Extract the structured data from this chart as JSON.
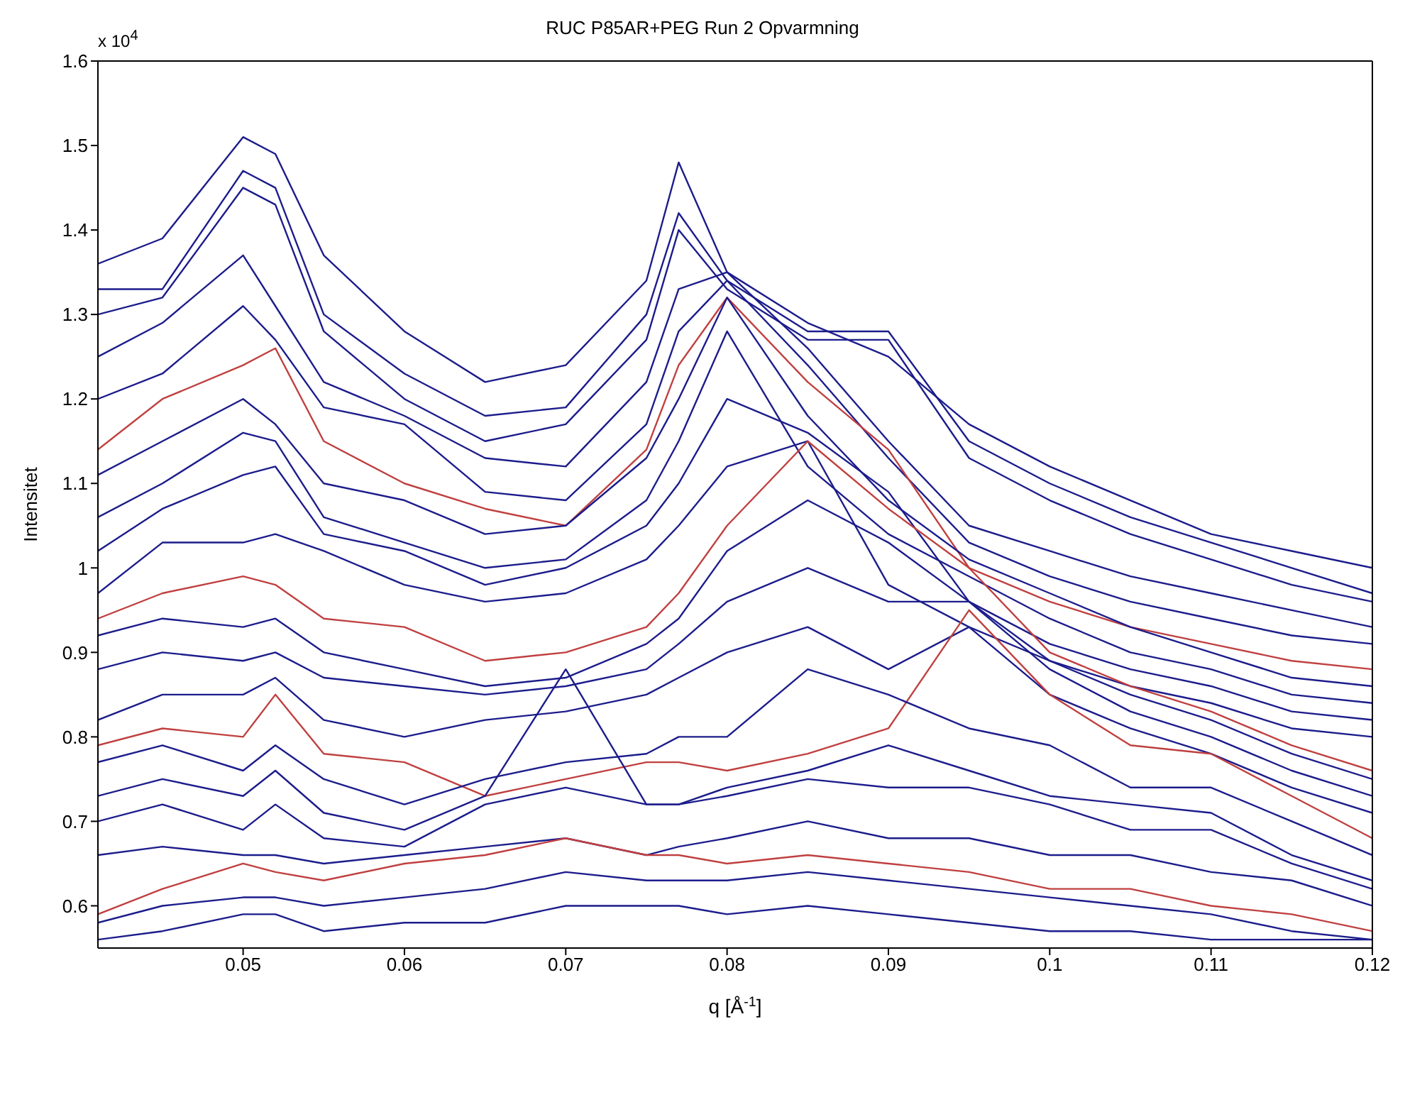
{
  "chart_data": {
    "type": "line",
    "title": "RUC P85AR+PEG Run 2 Opvarmning",
    "xlabel": "q [Å$^{-1}$]",
    "ylabel": "Intensitet",
    "annotations": [
      "x 10$^{4}$"
    ],
    "x": [
      0.041,
      0.045,
      0.05,
      0.052,
      0.055,
      0.06,
      0.065,
      0.07,
      0.075,
      0.077,
      0.08,
      0.085,
      0.09,
      0.095,
      0.1,
      0.105,
      0.11,
      0.115,
      0.12
    ],
    "xlim": [
      0.041,
      0.12
    ],
    "xticks": [
      0.05,
      0.06,
      0.07,
      0.08,
      0.09,
      0.1,
      0.11,
      0.12
    ],
    "ylim": [
      0.55,
      1.6
    ],
    "yticks": [
      0.6,
      0.7,
      0.8,
      0.9,
      1,
      1.1,
      1.2,
      1.3,
      1.4,
      1.5,
      1.6
    ],
    "series": [
      {
        "color": "#1c1c8c",
        "values": [
          1.36,
          1.39,
          1.51,
          1.49,
          1.37,
          1.28,
          1.22,
          1.24,
          1.34,
          1.48,
          1.35,
          1.29,
          1.25,
          1.17,
          1.12,
          1.08,
          1.04,
          1.02,
          1.0
        ]
      },
      {
        "color": "#1c1c8c",
        "values": [
          1.33,
          1.33,
          1.47,
          1.45,
          1.3,
          1.23,
          1.18,
          1.19,
          1.3,
          1.42,
          1.34,
          1.28,
          1.28,
          1.15,
          1.1,
          1.06,
          1.03,
          1.0,
          0.97
        ]
      },
      {
        "color": "#1c1c8c",
        "values": [
          1.3,
          1.32,
          1.45,
          1.43,
          1.28,
          1.2,
          1.15,
          1.17,
          1.27,
          1.4,
          1.33,
          1.27,
          1.27,
          1.13,
          1.08,
          1.04,
          1.01,
          0.98,
          0.96
        ]
      },
      {
        "color": "#1c1c8c",
        "values": [
          1.25,
          1.29,
          1.37,
          1.31,
          1.22,
          1.18,
          1.13,
          1.12,
          1.22,
          1.33,
          1.35,
          1.26,
          1.15,
          1.05,
          1.02,
          0.99,
          0.97,
          0.95,
          0.93
        ]
      },
      {
        "color": "#1c1c8c",
        "values": [
          1.2,
          1.23,
          1.31,
          1.27,
          1.19,
          1.17,
          1.09,
          1.08,
          1.17,
          1.28,
          1.34,
          1.24,
          1.13,
          1.03,
          0.99,
          0.96,
          0.94,
          0.92,
          0.91
        ]
      },
      {
        "color": "#c04040",
        "values": [
          1.14,
          1.2,
          1.24,
          1.26,
          1.15,
          1.1,
          1.07,
          1.05,
          1.14,
          1.24,
          1.32,
          1.22,
          1.14,
          1.0,
          0.96,
          0.93,
          0.91,
          0.89,
          0.88
        ]
      },
      {
        "color": "#1c1c8c",
        "values": [
          1.11,
          1.15,
          1.2,
          1.17,
          1.1,
          1.08,
          1.04,
          1.05,
          1.13,
          1.2,
          1.32,
          1.18,
          1.08,
          1.01,
          0.97,
          0.93,
          0.9,
          0.87,
          0.86
        ]
      },
      {
        "color": "#1c1c8c",
        "values": [
          1.06,
          1.1,
          1.16,
          1.15,
          1.06,
          1.03,
          1.0,
          1.01,
          1.08,
          1.15,
          1.28,
          1.12,
          1.04,
          0.99,
          0.94,
          0.9,
          0.88,
          0.85,
          0.84
        ]
      },
      {
        "color": "#1c1c8c",
        "values": [
          1.02,
          1.07,
          1.11,
          1.12,
          1.04,
          1.02,
          0.98,
          1.0,
          1.05,
          1.1,
          1.2,
          1.16,
          1.09,
          0.96,
          0.91,
          0.88,
          0.86,
          0.83,
          0.82
        ]
      },
      {
        "color": "#1c1c8c",
        "values": [
          0.97,
          1.03,
          1.03,
          1.04,
          1.02,
          0.98,
          0.96,
          0.97,
          1.01,
          1.05,
          1.12,
          1.15,
          0.98,
          0.93,
          0.89,
          0.86,
          0.84,
          0.81,
          0.8
        ]
      },
      {
        "color": "#c04040",
        "values": [
          0.94,
          0.97,
          0.99,
          0.98,
          0.94,
          0.93,
          0.89,
          0.9,
          0.93,
          0.97,
          1.05,
          1.15,
          1.07,
          1.0,
          0.9,
          0.86,
          0.83,
          0.79,
          0.76
        ]
      },
      {
        "color": "#1c1c8c",
        "values": [
          0.92,
          0.94,
          0.93,
          0.94,
          0.9,
          0.88,
          0.86,
          0.87,
          0.91,
          0.94,
          1.02,
          1.08,
          1.03,
          0.96,
          0.89,
          0.85,
          0.82,
          0.78,
          0.75
        ]
      },
      {
        "color": "#1c1c8c",
        "values": [
          0.88,
          0.9,
          0.89,
          0.9,
          0.87,
          0.86,
          0.85,
          0.86,
          0.88,
          0.91,
          0.96,
          1.0,
          0.96,
          0.96,
          0.88,
          0.83,
          0.8,
          0.76,
          0.73
        ]
      },
      {
        "color": "#1c1c8c",
        "values": [
          0.82,
          0.85,
          0.85,
          0.87,
          0.82,
          0.8,
          0.82,
          0.83,
          0.85,
          0.87,
          0.9,
          0.93,
          0.88,
          0.93,
          0.85,
          0.81,
          0.78,
          0.74,
          0.71
        ]
      },
      {
        "color": "#c04040",
        "values": [
          0.79,
          0.81,
          0.8,
          0.85,
          0.78,
          0.77,
          0.73,
          0.75,
          0.77,
          0.77,
          0.76,
          0.78,
          0.81,
          0.95,
          0.85,
          0.79,
          0.78,
          0.73,
          0.68
        ]
      },
      {
        "color": "#1c1c8c",
        "values": [
          0.77,
          0.79,
          0.76,
          0.79,
          0.75,
          0.72,
          0.75,
          0.77,
          0.78,
          0.8,
          0.8,
          0.88,
          0.85,
          0.81,
          0.79,
          0.74,
          0.74,
          0.7,
          0.66
        ]
      },
      {
        "color": "#1c1c8c",
        "values": [
          0.73,
          0.75,
          0.73,
          0.76,
          0.71,
          0.69,
          0.73,
          0.88,
          0.72,
          0.72,
          0.74,
          0.76,
          0.79,
          0.76,
          0.73,
          0.72,
          0.71,
          0.66,
          0.63
        ]
      },
      {
        "color": "#1c1c8c",
        "values": [
          0.7,
          0.72,
          0.69,
          0.72,
          0.68,
          0.67,
          0.72,
          0.74,
          0.72,
          0.72,
          0.73,
          0.75,
          0.74,
          0.74,
          0.72,
          0.69,
          0.69,
          0.65,
          0.62
        ]
      },
      {
        "color": "#1c1c8c",
        "values": [
          0.66,
          0.67,
          0.66,
          0.66,
          0.65,
          0.66,
          0.67,
          0.68,
          0.66,
          0.67,
          0.68,
          0.7,
          0.68,
          0.68,
          0.66,
          0.66,
          0.64,
          0.63,
          0.6
        ]
      },
      {
        "color": "#c04040",
        "values": [
          0.59,
          0.62,
          0.65,
          0.64,
          0.63,
          0.65,
          0.66,
          0.68,
          0.66,
          0.66,
          0.65,
          0.66,
          0.65,
          0.64,
          0.62,
          0.62,
          0.6,
          0.59,
          0.57
        ]
      },
      {
        "color": "#1c1c8c",
        "values": [
          0.58,
          0.6,
          0.61,
          0.61,
          0.6,
          0.61,
          0.62,
          0.64,
          0.63,
          0.63,
          0.63,
          0.64,
          0.63,
          0.62,
          0.61,
          0.6,
          0.59,
          0.57,
          0.56
        ]
      },
      {
        "color": "#1c1c8c",
        "values": [
          0.56,
          0.57,
          0.59,
          0.59,
          0.57,
          0.58,
          0.58,
          0.6,
          0.6,
          0.6,
          0.59,
          0.6,
          0.59,
          0.58,
          0.57,
          0.57,
          0.56,
          0.56,
          0.56
        ]
      }
    ]
  }
}
